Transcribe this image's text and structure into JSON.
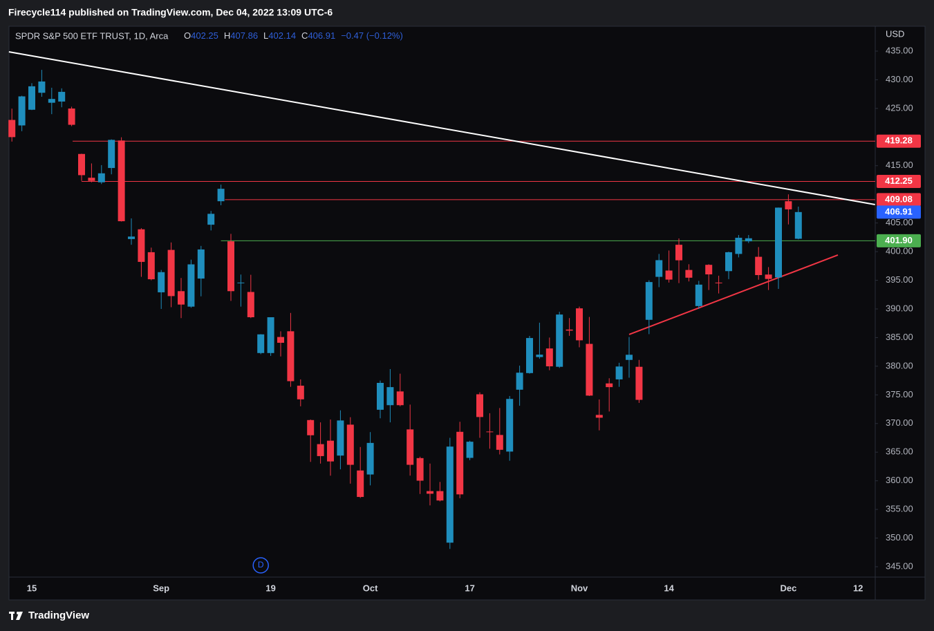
{
  "header": {
    "text": "Firecycle114 published on TradingView.com, Dec 04, 2022 13:09 UTC-6"
  },
  "footer": {
    "brand": "TradingView"
  },
  "chart_data": {
    "type": "candlestick",
    "title": "SPDR S&P 500 ETF TRUST, 1D, Arca",
    "legend_labels": [
      "O",
      "H",
      "L",
      "C"
    ],
    "change_label": "−0.47 (−0.12%)",
    "y_label": "USD",
    "categories": [
      null,
      null,
      "15",
      null,
      null,
      null,
      null,
      null,
      null,
      null,
      null,
      null,
      null,
      null,
      null,
      "Sep",
      null,
      null,
      null,
      null,
      null,
      null,
      null,
      null,
      null,
      null,
      "19",
      null,
      null,
      null,
      null,
      null,
      null,
      null,
      null,
      null,
      "Oct",
      null,
      null,
      null,
      null,
      null,
      null,
      null,
      null,
      null,
      "17",
      null,
      null,
      null,
      null,
      null,
      null,
      null,
      null,
      null,
      null,
      "Nov",
      null,
      null,
      null,
      null,
      null,
      null,
      null,
      null,
      "14",
      null,
      null,
      null,
      null,
      null,
      null,
      null,
      null,
      null,
      null,
      null,
      "Dec",
      null,
      null,
      null,
      null,
      null,
      null,
      "12"
    ],
    "ohlc": {
      "open": [
        422.99,
        422.03,
        424.77,
        427.73,
        425.99,
        426.2,
        424.98,
        417.05,
        412.9,
        412.1,
        414.6,
        419.4,
        402.2,
        403.9,
        399.9,
        392.9,
        400.3,
        393.1,
        390.4,
        395.3,
        404.7,
        408.8,
        401.8,
        394.5,
        392.96,
        382.3,
        382.3,
        385.1,
        386.1,
        376.6,
        370.6,
        366.4,
        367.0,
        364.4,
        369.8,
        361.8,
        361.1,
        372.4,
        373.2,
        375.6,
        368.97,
        363.96,
        358.2,
        358.2,
        349.2,
        368.55,
        364.0,
        375.1,
        368.6,
        368.0,
        365.1,
        375.9,
        378.8,
        381.6,
        383.1,
        379.9,
        386.4,
        390.1,
        383.9,
        371.5,
        377.0,
        377.7,
        381.1,
        379.9,
        388.1,
        395.6,
        396.7,
        401.2,
        396.8,
        390.5,
        397.7,
        394.6,
        396.6,
        399.6,
        401.8,
        399.1,
        396.0,
        395.5,
        408.8,
        402.25,
        null,
        null,
        null,
        null,
        null,
        null
      ],
      "high": [
        424.96,
        427.21,
        429.4,
        431.73,
        428.61,
        428.5,
        425.3,
        417.1,
        415.4,
        415.1,
        419.6,
        419.96,
        405.8,
        404.1,
        400.7,
        396.8,
        401.6,
        395.4,
        398.6,
        401.0,
        407.1,
        411.7,
        403.1,
        396.0,
        395.96,
        385.6,
        388.1,
        386.1,
        389.3,
        377.7,
        370.7,
        370.2,
        370.7,
        372.3,
        371.1,
        365.9,
        368.5,
        377.5,
        379.5,
        378.7,
        373.3,
        364.2,
        363.0,
        359.8,
        367.5,
        370.3,
        366.99,
        375.45,
        371.8,
        372.7,
        374.8,
        380.1,
        385.3,
        387.6,
        385.0,
        389.5,
        388.4,
        390.4,
        388.6,
        374.2,
        377.9,
        380.6,
        385.1,
        381.1,
        395.0,
        399.6,
        400.2,
        402.3,
        397.8,
        394.9,
        397.8,
        395.8,
        400.0,
        402.9,
        402.9,
        400.8,
        397.3,
        407.7,
        410.0,
        407.86,
        null,
        null,
        null,
        null,
        null,
        null
      ],
      "low": [
        419.21,
        421.03,
        424.71,
        427.03,
        424.0,
        425.2,
        421.9,
        412.36,
        412.1,
        411.8,
        413.5,
        405.25,
        401.2,
        395.6,
        395.0,
        390.0,
        390.3,
        388.4,
        390.2,
        392.2,
        403.7,
        408.1,
        391.4,
        390.4,
        388.4,
        382.1,
        381.8,
        381.7,
        376.4,
        373.0,
        363.3,
        363.0,
        360.9,
        362.0,
        359.5,
        357.0,
        359.2,
        370.9,
        370.2,
        373.0,
        360.9,
        357.7,
        355.7,
        356.4,
        348.1,
        356.96,
        363.6,
        367.5,
        365.6,
        364.6,
        363.5,
        373.1,
        378.7,
        381.3,
        379.3,
        379.7,
        385.3,
        383.3,
        374.8,
        368.8,
        372.1,
        376.4,
        378.0,
        373.6,
        385.6,
        393.8,
        394.6,
        394.5,
        394.8,
        390.0,
        393.3,
        392.7,
        395.2,
        399.0,
        401.5,
        395.1,
        393.3,
        393.5,
        404.75,
        402.14,
        null,
        null,
        null,
        null,
        null,
        null
      ],
      "close": [
        419.99,
        427.1,
        428.86,
        429.7,
        426.65,
        427.89,
        422.14,
        413.35,
        412.35,
        413.67,
        419.51,
        405.31,
        402.63,
        398.21,
        395.18,
        396.42,
        392.24,
        390.76,
        397.78,
        400.38,
        406.6,
        410.97,
        393.1,
        394.6,
        388.55,
        385.56,
        388.55,
        384.09,
        377.39,
        374.22,
        367.95,
        364.31,
        363.38,
        370.53,
        362.79,
        357.18,
        366.61,
        377.09,
        376.35,
        373.2,
        362.79,
        360.02,
        357.74,
        356.56,
        365.97,
        357.63,
        366.82,
        371.13,
        368.5,
        365.41,
        374.29,
        378.87,
        384.92,
        382.02,
        379.98,
        389.02,
        386.21,
        384.52,
        374.87,
        371.01,
        376.35,
        379.95,
        382.0,
        374.13,
        394.69,
        398.51,
        395.12,
        398.49,
        395.45,
        394.24,
        396.03,
        394.59,
        399.9,
        402.42,
        402.33,
        395.91,
        395.23,
        407.68,
        407.38,
        406.91,
        null,
        null,
        null,
        null,
        null,
        null
      ]
    },
    "up_color": "#1f8ebd",
    "down_color": "#f23645",
    "ylim": [
      343.19,
      439.34
    ],
    "yticks": [
      {
        "value": 345,
        "label": "345.00"
      },
      {
        "value": 350,
        "label": "350.00"
      },
      {
        "value": 355,
        "label": "355.00"
      },
      {
        "value": 360,
        "label": "360.00"
      },
      {
        "value": 365,
        "label": "365.00"
      },
      {
        "value": 370,
        "label": "370.00"
      },
      {
        "value": 375,
        "label": "375.00"
      },
      {
        "value": 380,
        "label": "380.00"
      },
      {
        "value": 385,
        "label": "385.00"
      },
      {
        "value": 390,
        "label": "390.00"
      },
      {
        "value": 395,
        "label": "395.00"
      },
      {
        "value": 400,
        "label": "400.00"
      },
      {
        "value": 405,
        "label": "405.00"
      },
      {
        "value": 415,
        "label": "415.00"
      },
      {
        "value": 425,
        "label": "425.00"
      },
      {
        "value": 430,
        "label": "430.00"
      },
      {
        "value": 435,
        "label": "435.00"
      }
    ],
    "grid": false,
    "hlines": [
      {
        "value": 419.28,
        "from": 6.1,
        "color": "#f23645"
      },
      {
        "value": 412.25,
        "from": 7,
        "color": "#f23645"
      },
      {
        "value": 409.08,
        "from": 21.4,
        "color": "#f23645"
      },
      {
        "value": {
          "value": 401.9,
          "label": "401.90"
        },
        "from": 21,
        "color": "#4caf50"
      }
    ],
    "price_marker": {
      "value": 406.91,
      "color": "#2962ff"
    },
    "trendlines": [
      {
        "from": [
          -0.3,
          434.88
        ],
        "to": [
          86.7,
          408.22
        ],
        "color": "#ffffff"
      },
      {
        "from": [
          62.0,
          385.54
        ],
        "to": [
          82.97,
          399.41
        ],
        "color": "#f23645"
      }
    ],
    "dividend_marker": {
      "label": "D",
      "index": 25
    }
  }
}
